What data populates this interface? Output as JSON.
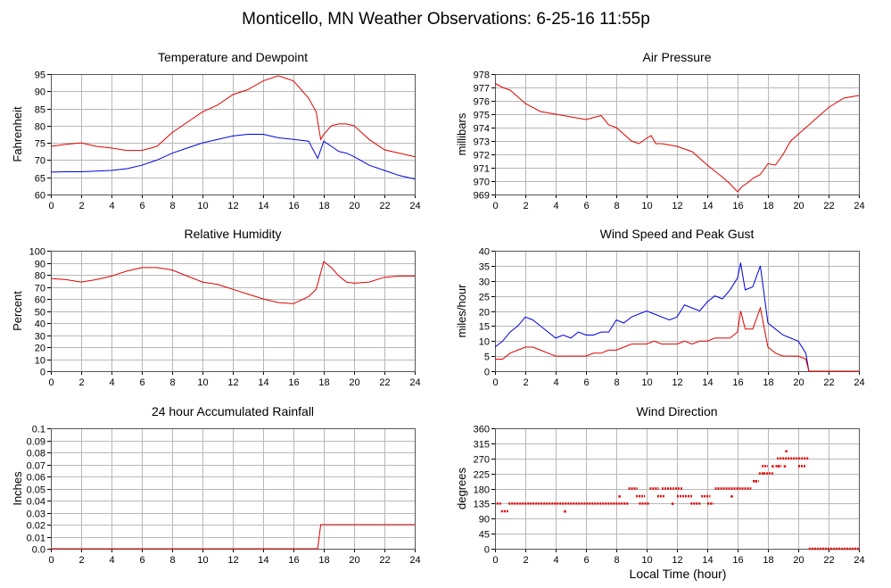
{
  "page_title": "Monticello, MN Weather Observations: 6-25-16 11:55p",
  "shared_xlabel": "Local Time (hour)",
  "colors": {
    "red": "#e00000",
    "blue": "#0000e0"
  },
  "chart_data": [
    {
      "id": "temp",
      "type": "line",
      "title": "Temperature and Dewpoint",
      "ylabel": "Fahrenheit",
      "xlim": [
        0,
        24
      ],
      "ylim": [
        60,
        95
      ],
      "xticks": [
        "0",
        "2",
        "4",
        "6",
        "8",
        "10",
        "12",
        "14",
        "16",
        "18",
        "20",
        "22",
        "24"
      ],
      "yticks": [
        "60",
        "65",
        "70",
        "75",
        "80",
        "85",
        "90",
        "95"
      ],
      "grid": true,
      "series": [
        {
          "color": "#e00000",
          "x": [
            0,
            1,
            2,
            3,
            4,
            5,
            6,
            7,
            8,
            9,
            10,
            11,
            12,
            13,
            14,
            15,
            16,
            17,
            17.5,
            17.8,
            18,
            18.5,
            19,
            19.5,
            20,
            20.5,
            21,
            22,
            23,
            24
          ],
          "y": [
            74,
            74.6,
            75,
            74,
            73.5,
            72.8,
            72.8,
            74,
            78,
            81,
            84,
            86,
            89,
            90.5,
            93,
            94.5,
            93,
            88,
            84,
            76,
            77.5,
            80,
            80.5,
            80.5,
            80,
            78,
            76,
            73,
            72,
            71
          ]
        },
        {
          "color": "#0000e0",
          "x": [
            0,
            1,
            2,
            3,
            4,
            5,
            6,
            7,
            8,
            9,
            10,
            11,
            12,
            13,
            14,
            15,
            16,
            17,
            17.6,
            18,
            18.5,
            19,
            19.5,
            20,
            21,
            22,
            23,
            24
          ],
          "y": [
            66.5,
            66.6,
            66.6,
            66.8,
            67,
            67.5,
            68.5,
            70,
            72,
            73.5,
            75,
            76,
            77,
            77.5,
            77.5,
            76.5,
            76,
            75.5,
            70.5,
            75.5,
            74,
            72.5,
            72,
            71,
            68.5,
            67,
            65.5,
            64.5
          ]
        }
      ]
    },
    {
      "id": "pressure",
      "type": "line",
      "title": "Air Pressure",
      "ylabel": "millibars",
      "xlim": [
        0,
        24
      ],
      "ylim": [
        969,
        978
      ],
      "xticks": [
        "0",
        "2",
        "4",
        "6",
        "8",
        "10",
        "12",
        "14",
        "16",
        "18",
        "20",
        "22",
        "24"
      ],
      "yticks": [
        "969",
        "970",
        "971",
        "972",
        "973",
        "974",
        "975",
        "976",
        "977",
        "978"
      ],
      "grid": true,
      "series": [
        {
          "color": "#e00000",
          "x": [
            0,
            0.5,
            1,
            2,
            3,
            4,
            5,
            6,
            7,
            7.5,
            8,
            9,
            9.5,
            10,
            10.3,
            10.6,
            11,
            12,
            13,
            14,
            15,
            15.5,
            16,
            16.3,
            16.7,
            17,
            17.5,
            18,
            18.5,
            19,
            19.5,
            20,
            21,
            22,
            23,
            24
          ],
          "y": [
            977.3,
            977,
            976.8,
            975.8,
            975.2,
            975,
            974.8,
            974.6,
            974.9,
            974.2,
            974,
            973,
            972.8,
            973.2,
            973.4,
            972.8,
            972.8,
            972.6,
            972.2,
            971.2,
            970.3,
            969.8,
            969.2,
            969.6,
            969.9,
            970.2,
            970.5,
            971.3,
            971.2,
            972,
            973,
            973.5,
            974.5,
            975.5,
            976.2,
            976.4
          ]
        }
      ]
    },
    {
      "id": "humidity",
      "type": "line",
      "title": "Relative Humidity",
      "ylabel": "Percent",
      "xlim": [
        0,
        24
      ],
      "ylim": [
        0,
        100
      ],
      "xticks": [
        "0",
        "2",
        "4",
        "6",
        "8",
        "10",
        "12",
        "14",
        "16",
        "18",
        "20",
        "22",
        "24"
      ],
      "yticks": [
        "0",
        "10",
        "20",
        "30",
        "40",
        "50",
        "60",
        "70",
        "80",
        "90",
        "100"
      ],
      "grid": true,
      "series": [
        {
          "color": "#e00000",
          "x": [
            0,
            1,
            2,
            3,
            4,
            5,
            6,
            7,
            8,
            9,
            10,
            11,
            12,
            13,
            14,
            15,
            16,
            17,
            17.5,
            18,
            18.5,
            19,
            19.5,
            20,
            21,
            22,
            23,
            24
          ],
          "y": [
            77,
            76,
            74,
            76,
            79,
            83,
            86,
            86,
            84,
            79,
            74,
            72,
            68,
            64,
            60,
            57,
            56,
            62,
            68,
            91,
            86,
            79,
            74,
            73,
            74,
            78,
            79,
            79
          ]
        }
      ]
    },
    {
      "id": "wind",
      "type": "line",
      "title": "Wind Speed and Peak Gust",
      "ylabel": "miles/hour",
      "xlim": [
        0,
        24
      ],
      "ylim": [
        0,
        40
      ],
      "xticks": [
        "0",
        "2",
        "4",
        "6",
        "8",
        "10",
        "12",
        "14",
        "16",
        "18",
        "20",
        "22",
        "24"
      ],
      "yticks": [
        "0",
        "5",
        "10",
        "15",
        "20",
        "25",
        "30",
        "35",
        "40"
      ],
      "grid": true,
      "series": [
        {
          "color": "#0000e0",
          "x": [
            0,
            0.5,
            1,
            1.5,
            2,
            2.5,
            3,
            3.5,
            4,
            4.5,
            5,
            5.5,
            6,
            6.5,
            7,
            7.5,
            8,
            8.5,
            9,
            9.5,
            10,
            10.5,
            11,
            11.5,
            12,
            12.5,
            13,
            13.5,
            14,
            14.5,
            15,
            15.5,
            16,
            16.2,
            16.5,
            17,
            17.5,
            18,
            18.5,
            19,
            19.5,
            20,
            20.5,
            20.7,
            21,
            22,
            23,
            24
          ],
          "y": [
            8,
            10,
            13,
            15,
            18,
            17,
            15,
            13,
            11,
            12,
            11,
            13,
            12,
            12,
            13,
            13,
            17,
            16,
            18,
            19,
            20,
            19,
            18,
            17,
            18,
            22,
            21,
            20,
            23,
            25,
            24,
            27,
            31,
            36,
            27,
            28,
            35,
            16,
            14,
            12,
            11,
            10,
            6,
            0,
            0,
            0,
            0,
            0
          ]
        },
        {
          "color": "#e00000",
          "x": [
            0,
            0.5,
            1,
            1.5,
            2,
            2.5,
            3,
            3.5,
            4,
            4.5,
            5,
            5.5,
            6,
            6.5,
            7,
            7.5,
            8,
            8.5,
            9,
            9.5,
            10,
            10.5,
            11,
            11.5,
            12,
            12.5,
            13,
            13.5,
            14,
            14.5,
            15,
            15.5,
            16,
            16.2,
            16.5,
            17,
            17.5,
            18,
            18.5,
            19,
            19.5,
            20,
            20.5,
            20.7,
            21,
            22,
            23,
            24
          ],
          "y": [
            4,
            4,
            6,
            7,
            8,
            8,
            7,
            6,
            5,
            5,
            5,
            5,
            5,
            6,
            6,
            7,
            7,
            8,
            9,
            9,
            9,
            10,
            9,
            9,
            9,
            10,
            9,
            10,
            10,
            11,
            11,
            11,
            13,
            20,
            14,
            14,
            21,
            8,
            6,
            5,
            5,
            5,
            4,
            0,
            0,
            0,
            0,
            0
          ]
        }
      ]
    },
    {
      "id": "rain",
      "type": "line",
      "title": "24 hour Accumulated Rainfall",
      "ylabel": "Inches",
      "xlim": [
        0,
        24
      ],
      "ylim": [
        0,
        0.1
      ],
      "xticks": [
        "0",
        "2",
        "4",
        "6",
        "8",
        "10",
        "12",
        "14",
        "16",
        "18",
        "20",
        "22",
        "24"
      ],
      "yticks": [
        "0.0",
        "0.01",
        "0.02",
        "0.03",
        "0.04",
        "0.05",
        "0.06",
        "0.07",
        "0.08",
        "0.09",
        "0.1"
      ],
      "grid": true,
      "series": [
        {
          "color": "#e00000",
          "x": [
            0,
            17.6,
            17.8,
            24
          ],
          "y": [
            0,
            0,
            0.02,
            0.02
          ]
        }
      ]
    },
    {
      "id": "direction",
      "type": "scatter",
      "title": "Wind Direction",
      "ylabel": "degrees",
      "xlim": [
        0,
        24
      ],
      "ylim": [
        0,
        360
      ],
      "xticks": [
        "0",
        "2",
        "4",
        "6",
        "8",
        "10",
        "12",
        "14",
        "16",
        "18",
        "20",
        "22",
        "24"
      ],
      "yticks": [
        "0",
        "45",
        "90",
        "135",
        "180",
        "225",
        "270",
        "315",
        "360"
      ],
      "grid": true,
      "series": [
        {
          "color": "#e00000",
          "segments": [
            {
              "x0": 0.1,
              "x1": 0.4,
              "y": 135
            },
            {
              "x0": 0.4,
              "x1": 0.9,
              "y": 112
            },
            {
              "x0": 0.9,
              "x1": 8.8,
              "y": 135
            },
            {
              "x0": 8.8,
              "x1": 9.4,
              "y": 180
            },
            {
              "x0": 9.3,
              "x1": 9.9,
              "y": 157
            },
            {
              "x0": 9.5,
              "x1": 10.2,
              "y": 135
            },
            {
              "x0": 10.2,
              "x1": 10.8,
              "y": 180
            },
            {
              "x0": 10.7,
              "x1": 11.2,
              "y": 157
            },
            {
              "x0": 11.0,
              "x1": 12.4,
              "y": 180
            },
            {
              "x0": 12.0,
              "x1": 13.0,
              "y": 157
            },
            {
              "x0": 12.9,
              "x1": 13.6,
              "y": 135
            },
            {
              "x0": 13.6,
              "x1": 14.2,
              "y": 157
            },
            {
              "x0": 14.0,
              "x1": 14.4,
              "y": 135
            },
            {
              "x0": 14.5,
              "x1": 16.9,
              "y": 180
            },
            {
              "x0": 17.0,
              "x1": 17.4,
              "y": 202
            },
            {
              "x0": 17.4,
              "x1": 17.8,
              "y": 225
            },
            {
              "x0": 17.7,
              "x1": 18.4,
              "y": 225
            },
            {
              "x0": 17.6,
              "x1": 18.0,
              "y": 247
            },
            {
              "x0": 18.5,
              "x1": 18.9,
              "y": 247
            },
            {
              "x0": 18.6,
              "x1": 20.7,
              "y": 270
            },
            {
              "x0": 20.0,
              "x1": 20.5,
              "y": 247
            },
            {
              "x0": 20.7,
              "x1": 24.0,
              "y": 0
            }
          ],
          "points": [
            {
              "x": 4.6,
              "y": 112
            },
            {
              "x": 8.2,
              "y": 157
            },
            {
              "x": 11.7,
              "y": 135
            },
            {
              "x": 15.6,
              "y": 157
            },
            {
              "x": 18.3,
              "y": 247
            },
            {
              "x": 18.7,
              "y": 247
            },
            {
              "x": 19.2,
              "y": 292
            },
            {
              "x": 19.1,
              "y": 247
            },
            {
              "x": 17.2,
              "y": 202
            }
          ]
        }
      ]
    }
  ]
}
